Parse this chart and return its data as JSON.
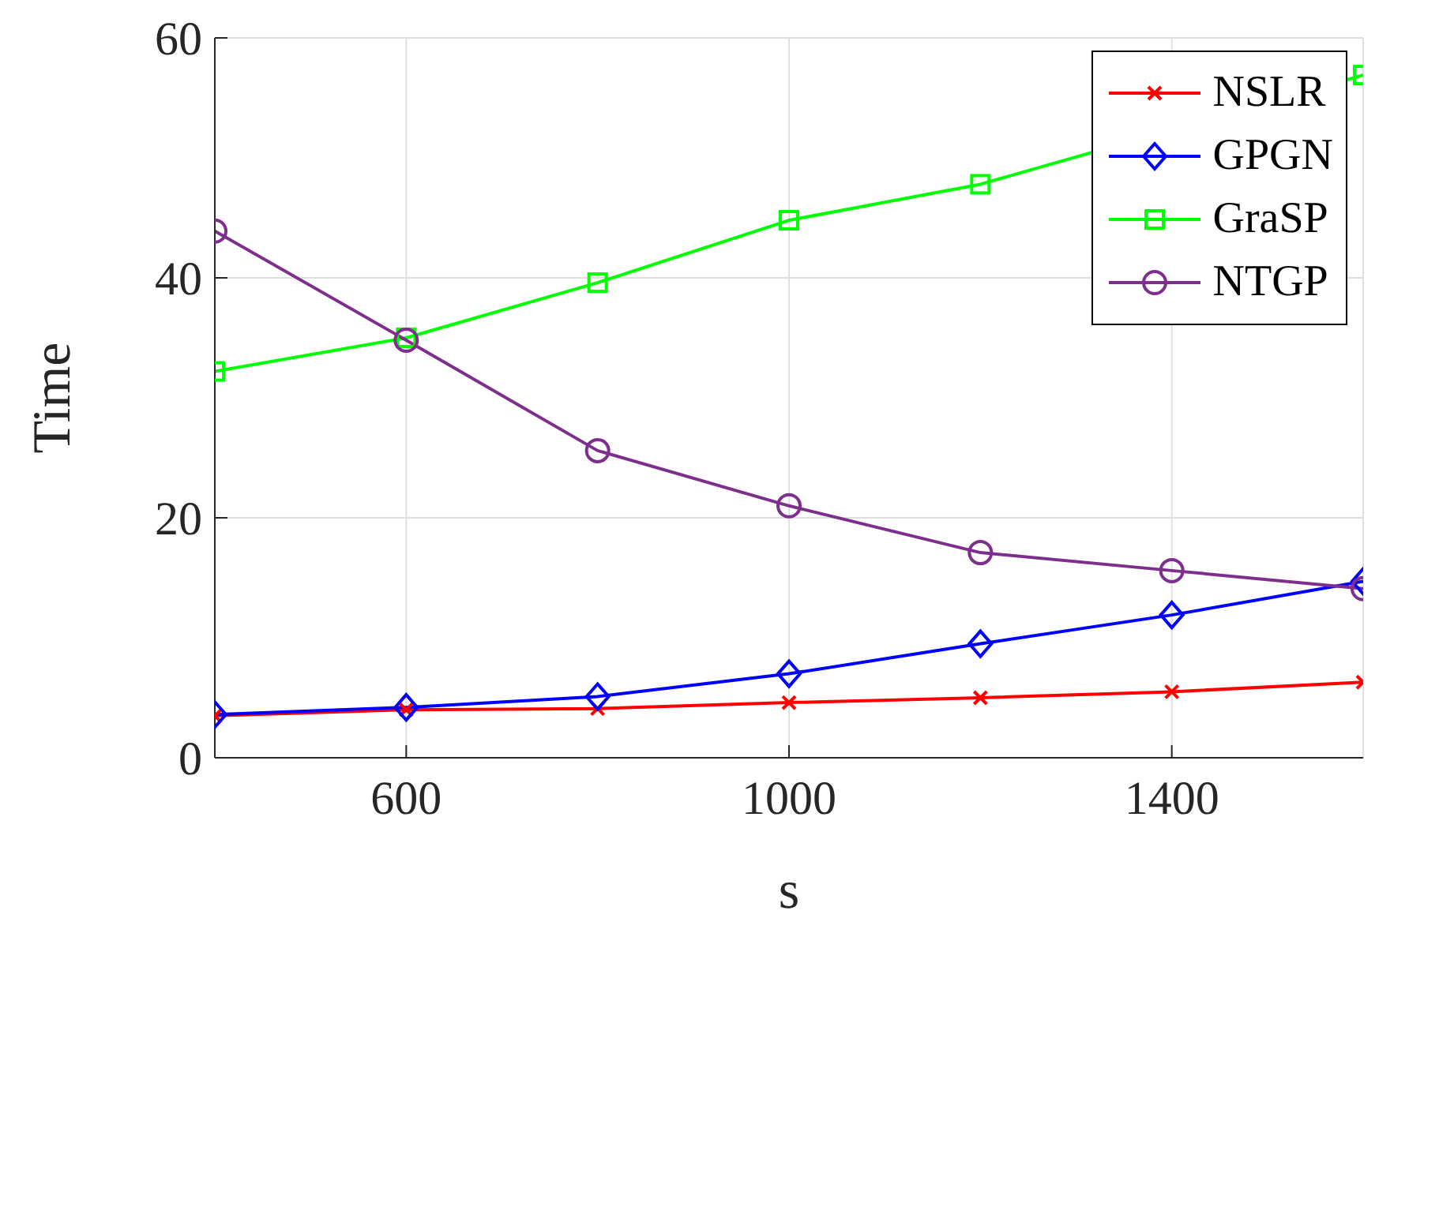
{
  "chart_data": {
    "type": "line",
    "xlabel": "s",
    "ylabel": "Time",
    "x": [
      400,
      600,
      800,
      1000,
      1200,
      1400,
      1600
    ],
    "xlim": [
      400,
      1600
    ],
    "xticks": [
      600,
      1000,
      1400
    ],
    "ylim": [
      0,
      60
    ],
    "yticks": [
      0,
      20,
      40,
      60
    ],
    "grid": true,
    "legend": "top right",
    "line_style": "solid",
    "series": [
      {
        "name": "NSLR",
        "color": "#ff0000",
        "marker": "cross",
        "values": [
          3.5,
          4.0,
          4.1,
          4.6,
          5.0,
          5.5,
          6.3
        ]
      },
      {
        "name": "GPGN",
        "color": "#0000ff",
        "marker": "diamond",
        "values": [
          3.6,
          4.2,
          5.1,
          7.0,
          9.5,
          11.9,
          14.7
        ]
      },
      {
        "name": "GraSP",
        "color": "#00ff00",
        "marker": "square",
        "values": [
          32.2,
          35.0,
          39.6,
          44.8,
          47.8,
          null,
          56.9
        ]
      },
      {
        "name": "NTGP",
        "color": "#7e2f8e",
        "marker": "circle",
        "values": [
          43.9,
          34.8,
          25.6,
          21.0,
          17.1,
          15.6,
          14.1
        ]
      }
    ]
  }
}
